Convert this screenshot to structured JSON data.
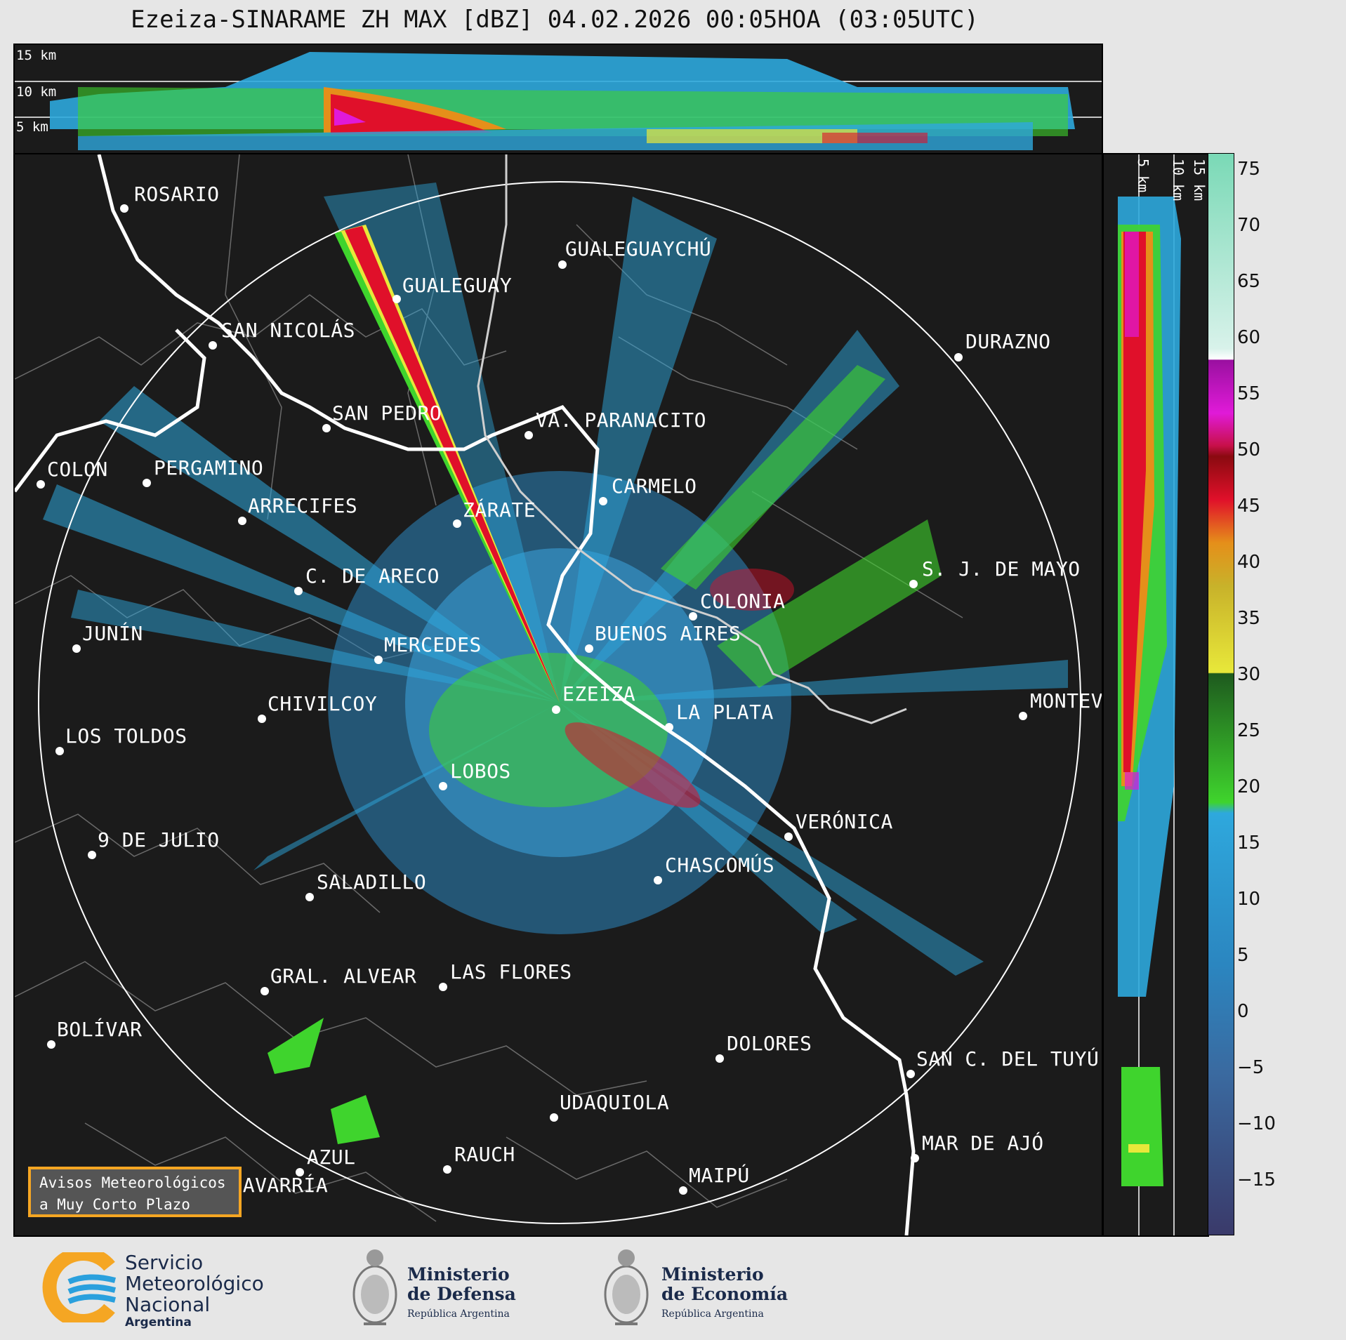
{
  "title": "Ezeiza-SINARAME ZH MAX [dBZ] 04.02.2026 00:05HOA (03:05UTC)",
  "top_panel": {
    "alt_labels": [
      "15 km",
      "10 km",
      "5 km"
    ]
  },
  "side_panel": {
    "alt_labels": [
      "5 km",
      "10 km",
      "15 km"
    ]
  },
  "colorbar": {
    "ticks": [
      "75",
      "70",
      "65",
      "60",
      "55",
      "50",
      "45",
      "40",
      "35",
      "30",
      "25",
      "20",
      "15",
      "10",
      "5",
      "0",
      "−5",
      "−10",
      "−15"
    ],
    "range": [
      -20,
      77
    ],
    "colors": {
      "cyan_blue": "#2ea8dd",
      "green": "#3fd42d",
      "yellow": "#e8e83a",
      "orange": "#e58f1a",
      "red": "#e0102a",
      "magenta": "#e01ad8",
      "purple": "#9a10a0",
      "white": "#ffffff",
      "mint": "#8adfc0"
    }
  },
  "cities": [
    "ROSARIO",
    "GUALEGUAYCHÚ",
    "GUALEGUAY",
    "SAN NICOLÁS",
    "DURAZNO",
    "SAN PEDRO",
    "VA. PARANACITO",
    "COLON",
    "PERGAMINO",
    "CARMELO",
    "ARRECIFES",
    "ZÁRATE",
    "S. J. DE MAYO",
    "C. DE ARECO",
    "COLONIA",
    "JUNÍN",
    "BUENOS AIRES",
    "MERCEDES",
    "MONTEV",
    "EZEIZA",
    "CHIVILCOY",
    "LA PLATA",
    "LOS TOLDOS",
    "LOBOS",
    "VERÓNICA",
    "9 DE JULIO",
    "CHASCOMÚS",
    "SALADILLO",
    "GRAL. ALVEAR",
    "LAS FLORES",
    "BOLÍVAR",
    "DOLORES",
    "SAN C. DEL TUYÚ",
    "UDAQUIOLA",
    "MAR DE AJÓ",
    "AZUL",
    "RAUCH",
    "OLAVARRÍA",
    "MAIPÚ"
  ],
  "alert_box": {
    "line1": "Avisos Meteorológicos",
    "line2": "a Muy Corto Plazo"
  },
  "logos": {
    "smn": {
      "line1": "Servicio",
      "line2": "Meteorológico",
      "line3": "Nacional",
      "line4": "Argentina"
    },
    "defensa": {
      "line1": "Ministerio",
      "line2": "de Defensa",
      "line3": "República Argentina"
    },
    "economia": {
      "line1": "Ministerio",
      "line2": "de Economía",
      "line3": "República Argentina"
    }
  }
}
